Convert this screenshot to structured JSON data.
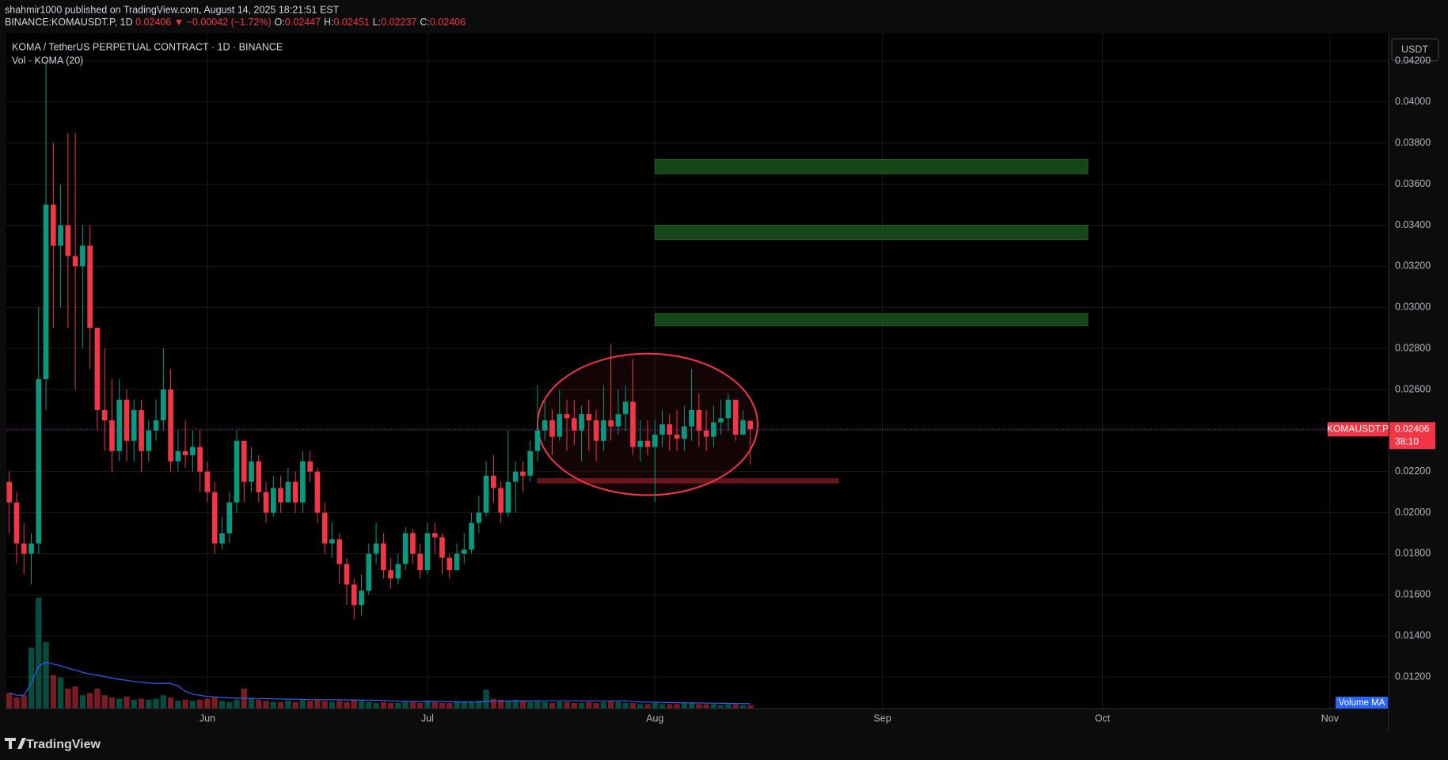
{
  "header": {
    "publisher": "shahmir1000 published on TradingView.com, August 14, 2025 18:21:51 EST",
    "symbol": "BINANCE:KOMAUSDT.P, 1D",
    "last": "0.02406",
    "change": "▼ −0.00042 (−1.72%)",
    "ohlc": [
      {
        "key": "O:",
        "val": "0.02447"
      },
      {
        "key": "H:",
        "val": "0.02451"
      },
      {
        "key": "L:",
        "val": "0.02237"
      },
      {
        "key": "C:",
        "val": "0.02406"
      }
    ]
  },
  "legend": {
    "title": "KOMA / TetherUS PERPETUAL CONTRACT · 1D · BINANCE",
    "volume": "Vol · KOMA (20)"
  },
  "currency": "USDT",
  "brand": "TradingView",
  "price_tag": {
    "symbol": "KOMAUSDT.P",
    "price": "0.02406",
    "countdown": "38:10"
  },
  "volume_ma_label": "Volume MA",
  "chart_data": {
    "type": "candlestick",
    "up_color": "#089981",
    "down_color": "#f23645",
    "grid": true,
    "ylim": [
      0.01046,
      0.04335
    ],
    "yticks": [
      {
        "value": 0.042,
        "label": "0.04200"
      },
      {
        "value": 0.04,
        "label": "0.04000"
      },
      {
        "value": 0.038,
        "label": "0.03800"
      },
      {
        "value": 0.036,
        "label": "0.03600"
      },
      {
        "value": 0.034,
        "label": "0.03400"
      },
      {
        "value": 0.032,
        "label": "0.03200"
      },
      {
        "value": 0.03,
        "label": "0.03000"
      },
      {
        "value": 0.028,
        "label": "0.02800"
      },
      {
        "value": 0.026,
        "label": "0.02600"
      },
      {
        "value": 0.024,
        "label": "0.02400"
      },
      {
        "value": 0.022,
        "label": "0.02200"
      },
      {
        "value": 0.02,
        "label": "0.02000"
      },
      {
        "value": 0.018,
        "label": "0.01800"
      },
      {
        "value": 0.016,
        "label": "0.01600"
      },
      {
        "value": 0.014,
        "label": "0.01400"
      },
      {
        "value": 0.012,
        "label": "0.01200"
      }
    ],
    "xlim": [
      -0.4,
      188
    ],
    "xticks": [
      {
        "value": 27,
        "label": "Jun"
      },
      {
        "value": 57,
        "label": "Jul"
      },
      {
        "value": 88,
        "label": "Aug"
      },
      {
        "value": 119,
        "label": "Sep"
      },
      {
        "value": 149,
        "label": "Oct"
      },
      {
        "value": 180,
        "label": "Nov"
      }
    ],
    "last_price": 0.02406,
    "candles": [
      [
        0.0215,
        0.022,
        0.019,
        0.0205
      ],
      [
        0.0205,
        0.021,
        0.0175,
        0.0185
      ],
      [
        0.0185,
        0.0195,
        0.017,
        0.018
      ],
      [
        0.018,
        0.019,
        0.0165,
        0.0185
      ],
      [
        0.0185,
        0.03,
        0.018,
        0.0265
      ],
      [
        0.0265,
        0.042,
        0.025,
        0.035
      ],
      [
        0.035,
        0.038,
        0.029,
        0.033
      ],
      [
        0.033,
        0.036,
        0.03,
        0.034
      ],
      [
        0.034,
        0.0385,
        0.029,
        0.0325
      ],
      [
        0.0325,
        0.0385,
        0.026,
        0.032
      ],
      [
        0.032,
        0.034,
        0.028,
        0.033
      ],
      [
        0.033,
        0.034,
        0.027,
        0.029
      ],
      [
        0.029,
        0.029,
        0.024,
        0.025
      ],
      [
        0.025,
        0.028,
        0.023,
        0.0245
      ],
      [
        0.0245,
        0.0265,
        0.022,
        0.023
      ],
      [
        0.023,
        0.0265,
        0.0225,
        0.0255
      ],
      [
        0.0255,
        0.026,
        0.0225,
        0.0235
      ],
      [
        0.0235,
        0.0255,
        0.0225,
        0.025
      ],
      [
        0.025,
        0.0255,
        0.022,
        0.023
      ],
      [
        0.023,
        0.0245,
        0.0225,
        0.024
      ],
      [
        0.024,
        0.0255,
        0.0235,
        0.0245
      ],
      [
        0.0245,
        0.028,
        0.024,
        0.026
      ],
      [
        0.026,
        0.027,
        0.022,
        0.0225
      ],
      [
        0.0225,
        0.024,
        0.022,
        0.023
      ],
      [
        0.023,
        0.0245,
        0.0222,
        0.0228
      ],
      [
        0.0228,
        0.024,
        0.022,
        0.0232
      ],
      [
        0.0232,
        0.024,
        0.021,
        0.022
      ],
      [
        0.022,
        0.0225,
        0.0205,
        0.021
      ],
      [
        0.021,
        0.0215,
        0.018,
        0.0185
      ],
      [
        0.0185,
        0.0198,
        0.0182,
        0.019
      ],
      [
        0.019,
        0.021,
        0.0185,
        0.0205
      ],
      [
        0.0205,
        0.024,
        0.02,
        0.0235
      ],
      [
        0.0235,
        0.0235,
        0.0205,
        0.0215
      ],
      [
        0.0215,
        0.0232,
        0.021,
        0.0225
      ],
      [
        0.0225,
        0.0228,
        0.0205,
        0.021
      ],
      [
        0.021,
        0.0215,
        0.0195,
        0.02
      ],
      [
        0.02,
        0.0218,
        0.0198,
        0.0212
      ],
      [
        0.0212,
        0.0218,
        0.02,
        0.0205
      ],
      [
        0.0205,
        0.0222,
        0.0205,
        0.0215
      ],
      [
        0.0215,
        0.022,
        0.02,
        0.0205
      ],
      [
        0.0205,
        0.023,
        0.02,
        0.0225
      ],
      [
        0.0225,
        0.023,
        0.0215,
        0.022
      ],
      [
        0.022,
        0.0222,
        0.0195,
        0.02
      ],
      [
        0.02,
        0.0205,
        0.018,
        0.0185
      ],
      [
        0.0185,
        0.0195,
        0.0178,
        0.0187
      ],
      [
        0.0187,
        0.019,
        0.0165,
        0.0175
      ],
      [
        0.0175,
        0.0178,
        0.0155,
        0.0165
      ],
      [
        0.0165,
        0.0168,
        0.0148,
        0.0155
      ],
      [
        0.0155,
        0.017,
        0.015,
        0.0162
      ],
      [
        0.0162,
        0.0185,
        0.016,
        0.018
      ],
      [
        0.018,
        0.0195,
        0.0175,
        0.0185
      ],
      [
        0.0185,
        0.019,
        0.0168,
        0.0172
      ],
      [
        0.0172,
        0.0178,
        0.0163,
        0.0168
      ],
      [
        0.0168,
        0.018,
        0.0165,
        0.0175
      ],
      [
        0.0175,
        0.0193,
        0.0172,
        0.019
      ],
      [
        0.019,
        0.0192,
        0.0175,
        0.018
      ],
      [
        0.018,
        0.0185,
        0.0168,
        0.0172
      ],
      [
        0.0172,
        0.0195,
        0.017,
        0.019
      ],
      [
        0.019,
        0.0195,
        0.018,
        0.0188
      ],
      [
        0.0188,
        0.019,
        0.017,
        0.0178
      ],
      [
        0.0178,
        0.018,
        0.0168,
        0.0172
      ],
      [
        0.0172,
        0.0185,
        0.0172,
        0.018
      ],
      [
        0.018,
        0.019,
        0.0175,
        0.0182
      ],
      [
        0.0182,
        0.02,
        0.018,
        0.0195
      ],
      [
        0.0195,
        0.0208,
        0.019,
        0.02
      ],
      [
        0.02,
        0.0225,
        0.0198,
        0.0218
      ],
      [
        0.0218,
        0.0228,
        0.0205,
        0.0212
      ],
      [
        0.0212,
        0.0215,
        0.0195,
        0.02
      ],
      [
        0.02,
        0.024,
        0.0198,
        0.0215
      ],
      [
        0.0215,
        0.0225,
        0.02,
        0.022
      ],
      [
        0.022,
        0.0225,
        0.021,
        0.0218
      ],
      [
        0.0218,
        0.0235,
        0.0215,
        0.023
      ],
      [
        0.023,
        0.0262,
        0.0225,
        0.024
      ],
      [
        0.024,
        0.0255,
        0.0235,
        0.0245
      ],
      [
        0.0245,
        0.025,
        0.0228,
        0.0237
      ],
      [
        0.0237,
        0.026,
        0.0235,
        0.0248
      ],
      [
        0.0248,
        0.0255,
        0.023,
        0.0246
      ],
      [
        0.0246,
        0.0255,
        0.0233,
        0.024
      ],
      [
        0.024,
        0.0252,
        0.0225,
        0.0248
      ],
      [
        0.0248,
        0.0255,
        0.023,
        0.0245
      ],
      [
        0.0245,
        0.025,
        0.0225,
        0.0235
      ],
      [
        0.0235,
        0.0262,
        0.023,
        0.0245
      ],
      [
        0.0245,
        0.0282,
        0.0235,
        0.0242
      ],
      [
        0.0242,
        0.026,
        0.0238,
        0.0248
      ],
      [
        0.0248,
        0.0262,
        0.024,
        0.0254
      ],
      [
        0.0254,
        0.0275,
        0.0228,
        0.0232
      ],
      [
        0.0232,
        0.0245,
        0.0225,
        0.0235
      ],
      [
        0.0235,
        0.0245,
        0.0228,
        0.0232
      ],
      [
        0.0232,
        0.0245,
        0.0205,
        0.0238
      ],
      [
        0.0238,
        0.025,
        0.0232,
        0.0243
      ],
      [
        0.0243,
        0.0248,
        0.023,
        0.0238
      ],
      [
        0.0238,
        0.025,
        0.023,
        0.0236
      ],
      [
        0.0236,
        0.0252,
        0.023,
        0.0242
      ],
      [
        0.0242,
        0.027,
        0.0235,
        0.025
      ],
      [
        0.025,
        0.0258,
        0.0232,
        0.024
      ],
      [
        0.024,
        0.025,
        0.023,
        0.0237
      ],
      [
        0.0237,
        0.0252,
        0.0232,
        0.0244
      ],
      [
        0.0244,
        0.0255,
        0.0238,
        0.0246
      ],
      [
        0.0246,
        0.0258,
        0.024,
        0.0255
      ],
      [
        0.0255,
        0.0255,
        0.0235,
        0.0238
      ],
      [
        0.0238,
        0.025,
        0.0238,
        0.0245
      ],
      [
        0.02447,
        0.02451,
        0.02237,
        0.02406
      ]
    ],
    "volume": [
      14,
      10,
      12,
      55,
      100,
      60,
      30,
      28,
      18,
      20,
      12,
      14,
      18,
      12,
      10,
      9,
      11,
      8,
      9,
      8,
      9,
      12,
      10,
      7,
      8,
      7,
      8,
      9,
      10,
      7,
      6,
      8,
      18,
      9,
      8,
      7,
      6,
      6,
      7,
      6,
      8,
      7,
      8,
      7,
      6,
      7,
      6,
      8,
      7,
      6,
      5,
      6,
      5,
      5,
      6,
      6,
      5,
      7,
      6,
      5,
      5,
      6,
      6,
      6,
      7,
      17,
      9,
      8,
      7,
      8,
      7,
      6,
      7,
      6,
      5,
      6,
      6,
      5,
      5,
      6,
      5,
      6,
      7,
      6,
      5,
      5,
      4,
      4,
      5,
      4,
      4,
      4,
      5,
      5,
      4,
      4,
      4,
      3,
      4,
      4,
      3,
      3
    ],
    "volume_ma_color": "#2962ff",
    "zones": [
      {
        "top": 0.0372,
        "bottom": 0.0365,
        "start": 88,
        "end": 147,
        "color": "#1b5e20"
      },
      {
        "top": 0.034,
        "bottom": 0.0333,
        "start": 88,
        "end": 147,
        "color": "#1b5e20"
      },
      {
        "top": 0.0297,
        "bottom": 0.0291,
        "start": 88,
        "end": 147,
        "color": "#1b5e20"
      },
      {
        "top": 0.02165,
        "bottom": 0.02145,
        "start": 72,
        "end": 113,
        "color": "#801922"
      }
    ],
    "ellipse": {
      "center": 87,
      "price": 0.0243,
      "half_days": 15,
      "half_price": 0.00345,
      "color": "#f23645"
    }
  }
}
